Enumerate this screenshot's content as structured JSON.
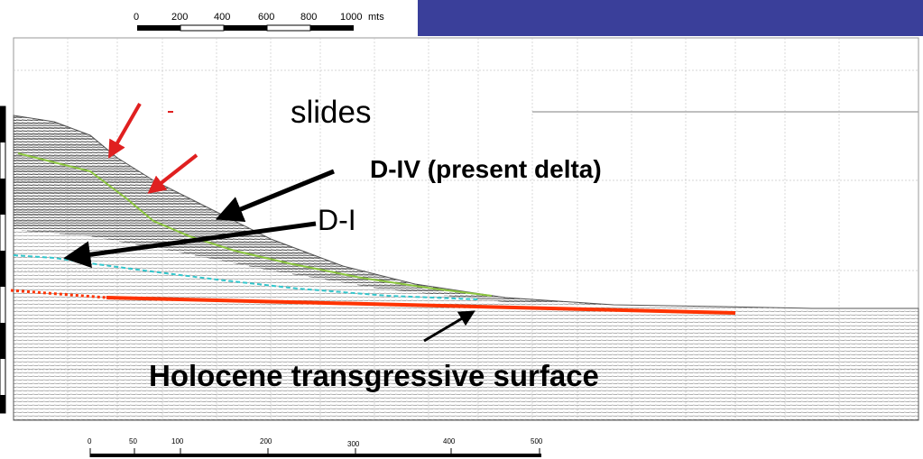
{
  "top_scale": {
    "ticks": [
      "0",
      "200",
      "400",
      "600",
      "800",
      "1000"
    ],
    "unit": "mts"
  },
  "bottom_scale": {
    "ticks": [
      "0",
      "50",
      "100",
      "200",
      "300",
      "400",
      "500"
    ]
  },
  "annotations": {
    "slides": "slides",
    "present_delta": "D-IV (present delta)",
    "d_one": "D-I",
    "holocene": "Holocene transgressive surface"
  },
  "colors": {
    "header_band": "#3a3f9a",
    "slide_arrows": "#e02020",
    "pointer_arrows": "#000000",
    "d4_horizon": "#8cc63f",
    "d1_horizon": "#33c6cc",
    "holocene_surface": "#ff3300"
  }
}
